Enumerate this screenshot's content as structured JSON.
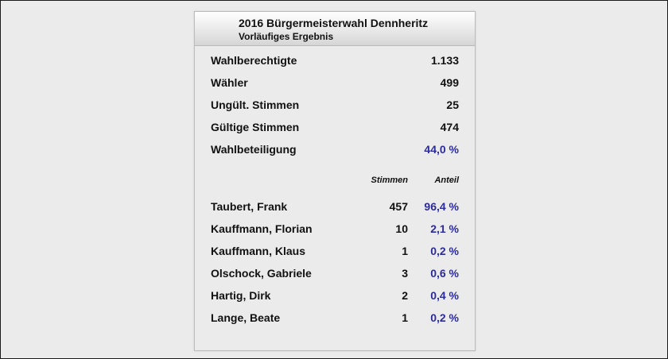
{
  "header": {
    "title": "2016 Bürgermeisterwahl Dennheritz",
    "subtitle": "Vorläufiges Ergebnis"
  },
  "summary": [
    {
      "label": "Wahlberechtigte",
      "value": "1.133"
    },
    {
      "label": "Wähler",
      "value": "499"
    },
    {
      "label": "Ungült. Stimmen",
      "value": "25"
    },
    {
      "label": "Gültige Stimmen",
      "value": "474"
    },
    {
      "label": "Wahlbeteiligung",
      "value": "44,0 %"
    }
  ],
  "columns": {
    "votes": "Stimmen",
    "share": "Anteil"
  },
  "candidates": [
    {
      "name": "Taubert, Frank",
      "votes": "457",
      "share": "96,4 %"
    },
    {
      "name": "Kauffmann, Florian",
      "votes": "10",
      "share": "2,1 %"
    },
    {
      "name": "Kauffmann, Klaus",
      "votes": "1",
      "share": "0,2 %"
    },
    {
      "name": "Olschock, Gabriele",
      "votes": "3",
      "share": "0,6 %"
    },
    {
      "name": "Hartig, Dirk",
      "votes": "2",
      "share": "0,4 %"
    },
    {
      "name": "Lange, Beate",
      "votes": "1",
      "share": "0,2 %"
    }
  ],
  "colors": {
    "accent": "#2b2b9a",
    "text": "#111111",
    "background": "#ebebeb"
  }
}
